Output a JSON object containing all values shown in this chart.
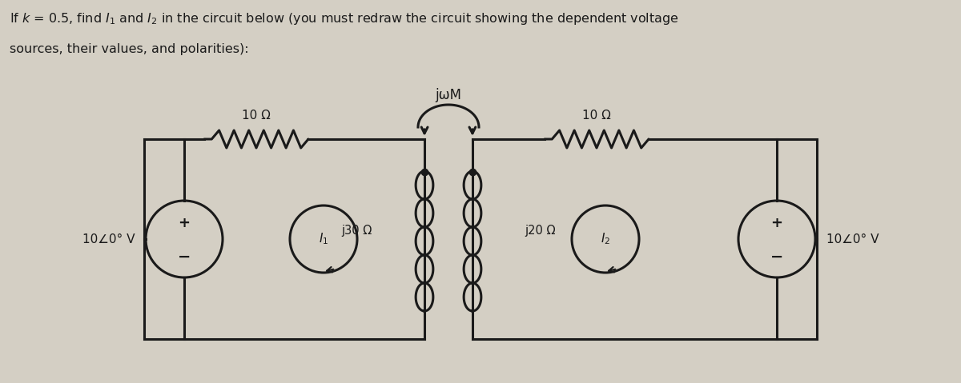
{
  "bg_color": "#d4cfc4",
  "circuit_color": "#1a1a1a",
  "resistor_10_left_label": "10 Ω",
  "resistor_10_right_label": "10 Ω",
  "inductor_j30_label": "j30 Ω",
  "inductor_j20_label": "j20 Ω",
  "mutual_label": "jωM",
  "vs_left_label": "10∠0° V",
  "vs_right_label": "10∠0° V",
  "lw": 2.2,
  "title1": "If k = 0.5, find I",
  "title2": " and I",
  "title3": " in the circuit below (you must redraw the circuit showing the dependent voltage",
  "title4": "sources, their values, and polarities):"
}
